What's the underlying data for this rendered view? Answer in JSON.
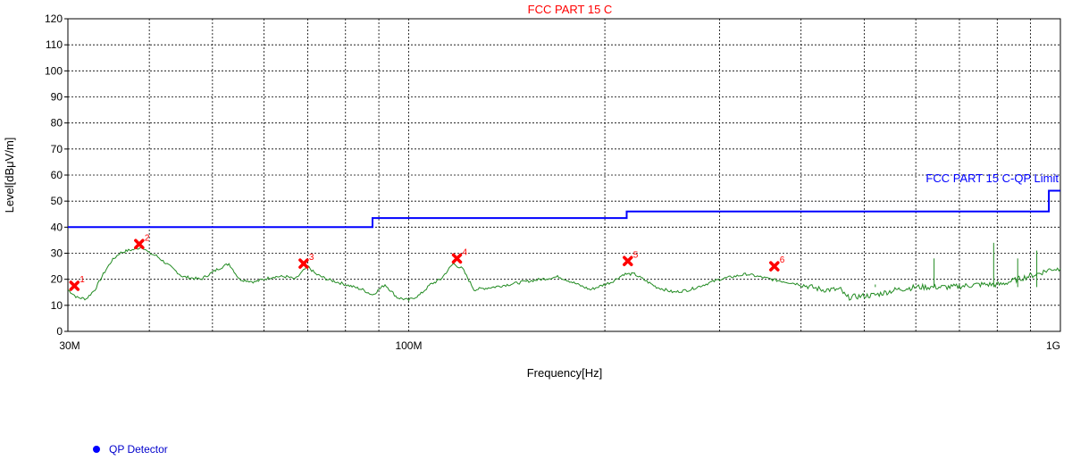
{
  "chart_data": {
    "type": "line",
    "title": "FCC PART 15 C",
    "xlabel": "Frequency[Hz]",
    "ylabel": "Level[dBμV/m]",
    "x_scale": "log",
    "xlim_hz": [
      30000000,
      1000000000
    ],
    "ylim": [
      0,
      120
    ],
    "yticks": [
      0,
      10,
      20,
      30,
      40,
      50,
      60,
      70,
      80,
      90,
      100,
      110,
      120
    ],
    "xtick_labels": [
      {
        "value": 30000000,
        "label": "30M"
      },
      {
        "value": 100000000,
        "label": "100M"
      },
      {
        "value": 1000000000,
        "label": "1G"
      }
    ],
    "grid": true,
    "series": [
      {
        "name": "FCC PART 15 C-QP Limit",
        "color": "#0000ff",
        "style": "step",
        "points": [
          [
            30000000,
            40
          ],
          [
            88000000,
            40
          ],
          [
            88000000,
            43.5
          ],
          [
            216000000,
            43.5
          ],
          [
            216000000,
            46
          ],
          [
            960000000,
            46
          ],
          [
            960000000,
            54
          ],
          [
            1000000000,
            54
          ]
        ]
      },
      {
        "color": "#228b22",
        "style": "trace",
        "points": [
          [
            30000000,
            16
          ],
          [
            31000000,
            13
          ],
          [
            32000000,
            12.5
          ],
          [
            33000000,
            16
          ],
          [
            34000000,
            22
          ],
          [
            35000000,
            27
          ],
          [
            36000000,
            30
          ],
          [
            37000000,
            31
          ],
          [
            38000000,
            31.5
          ],
          [
            39000000,
            32.5
          ],
          [
            40000000,
            30
          ],
          [
            41000000,
            29
          ],
          [
            43000000,
            25
          ],
          [
            45000000,
            21
          ],
          [
            48000000,
            20
          ],
          [
            51000000,
            24
          ],
          [
            53000000,
            26
          ],
          [
            55000000,
            20
          ],
          [
            58000000,
            19
          ],
          [
            62000000,
            21
          ],
          [
            65000000,
            21
          ],
          [
            67000000,
            20
          ],
          [
            70000000,
            25
          ],
          [
            72000000,
            22
          ],
          [
            75000000,
            20
          ],
          [
            80000000,
            18
          ],
          [
            85000000,
            16
          ],
          [
            88000000,
            14
          ],
          [
            92000000,
            18
          ],
          [
            96000000,
            13
          ],
          [
            100000000,
            12
          ],
          [
            104000000,
            14
          ],
          [
            108000000,
            18
          ],
          [
            112000000,
            20
          ],
          [
            117000000,
            26
          ],
          [
            121000000,
            24
          ],
          [
            126000000,
            16
          ],
          [
            135000000,
            17
          ],
          [
            150000000,
            19
          ],
          [
            170000000,
            21
          ],
          [
            190000000,
            16
          ],
          [
            205000000,
            19
          ],
          [
            214000000,
            22
          ],
          [
            222000000,
            22
          ],
          [
            240000000,
            17
          ],
          [
            255000000,
            15
          ],
          [
            270000000,
            16
          ],
          [
            300000000,
            20
          ],
          [
            330000000,
            22
          ],
          [
            360000000,
            20
          ],
          [
            400000000,
            18
          ],
          [
            430000000,
            16
          ],
          [
            460000000,
            16
          ],
          [
            470000000,
            13
          ],
          [
            520000000,
            14
          ],
          [
            560000000,
            16
          ],
          [
            600000000,
            17
          ],
          [
            680000000,
            17
          ],
          [
            750000000,
            18
          ],
          [
            810000000,
            18
          ],
          [
            860000000,
            20
          ],
          [
            920000000,
            22
          ],
          [
            970000000,
            24
          ],
          [
            1000000000,
            24
          ]
        ],
        "spikes": [
          [
            520000000,
            18
          ],
          [
            640000000,
            28
          ],
          [
            790000000,
            34
          ],
          [
            860000000,
            28
          ],
          [
            920000000,
            31
          ]
        ]
      }
    ],
    "markers": [
      {
        "label": "1",
        "x": 30700000,
        "y": 17.5
      },
      {
        "label": "2",
        "x": 38600000,
        "y": 33.5
      },
      {
        "label": "3",
        "x": 69000000,
        "y": 26
      },
      {
        "label": "4",
        "x": 118600000,
        "y": 28
      },
      {
        "label": "5",
        "x": 216900000,
        "y": 27
      },
      {
        "label": "6",
        "x": 364000000,
        "y": 25
      }
    ],
    "limit_label": "FCC PART 15 C-QP Limit",
    "legend": [
      {
        "label": "QP Detector",
        "color": "#0000ff"
      }
    ]
  }
}
